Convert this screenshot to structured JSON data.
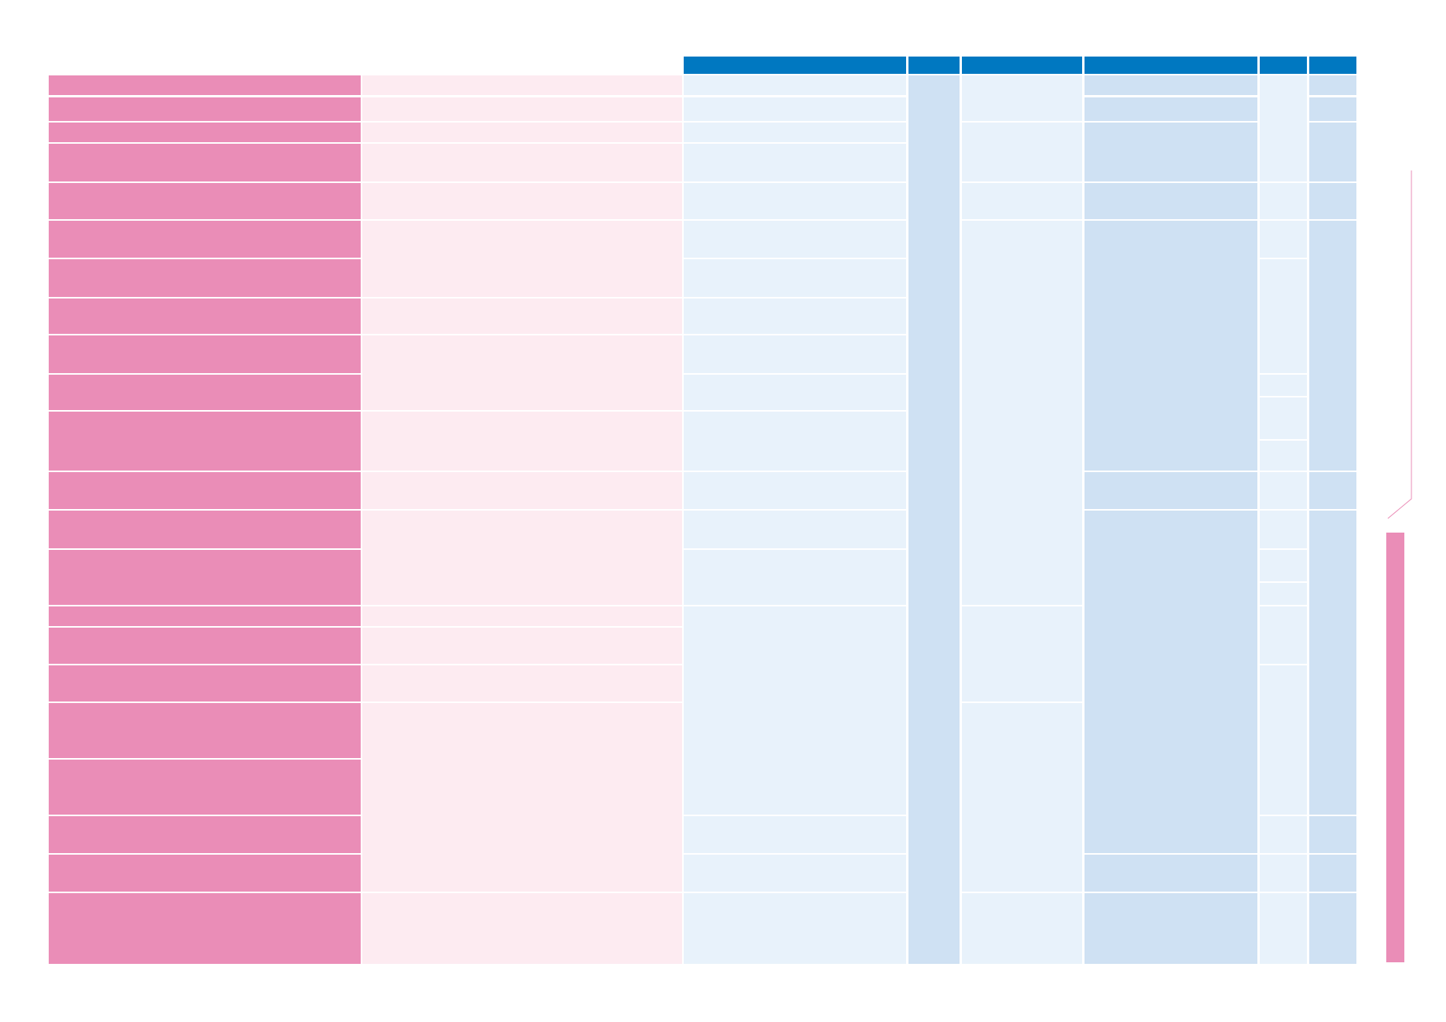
{
  "table": {
    "header": [
      "",
      "",
      "",
      "",
      "",
      ""
    ],
    "rows_labels": []
  },
  "colors": {
    "header": "#0078c1",
    "pink_dark": "#ea8db7",
    "pink_light": "#fdebf1",
    "blue_light": "#e8f2fb",
    "blue_mid": "#cfe1f3"
  }
}
